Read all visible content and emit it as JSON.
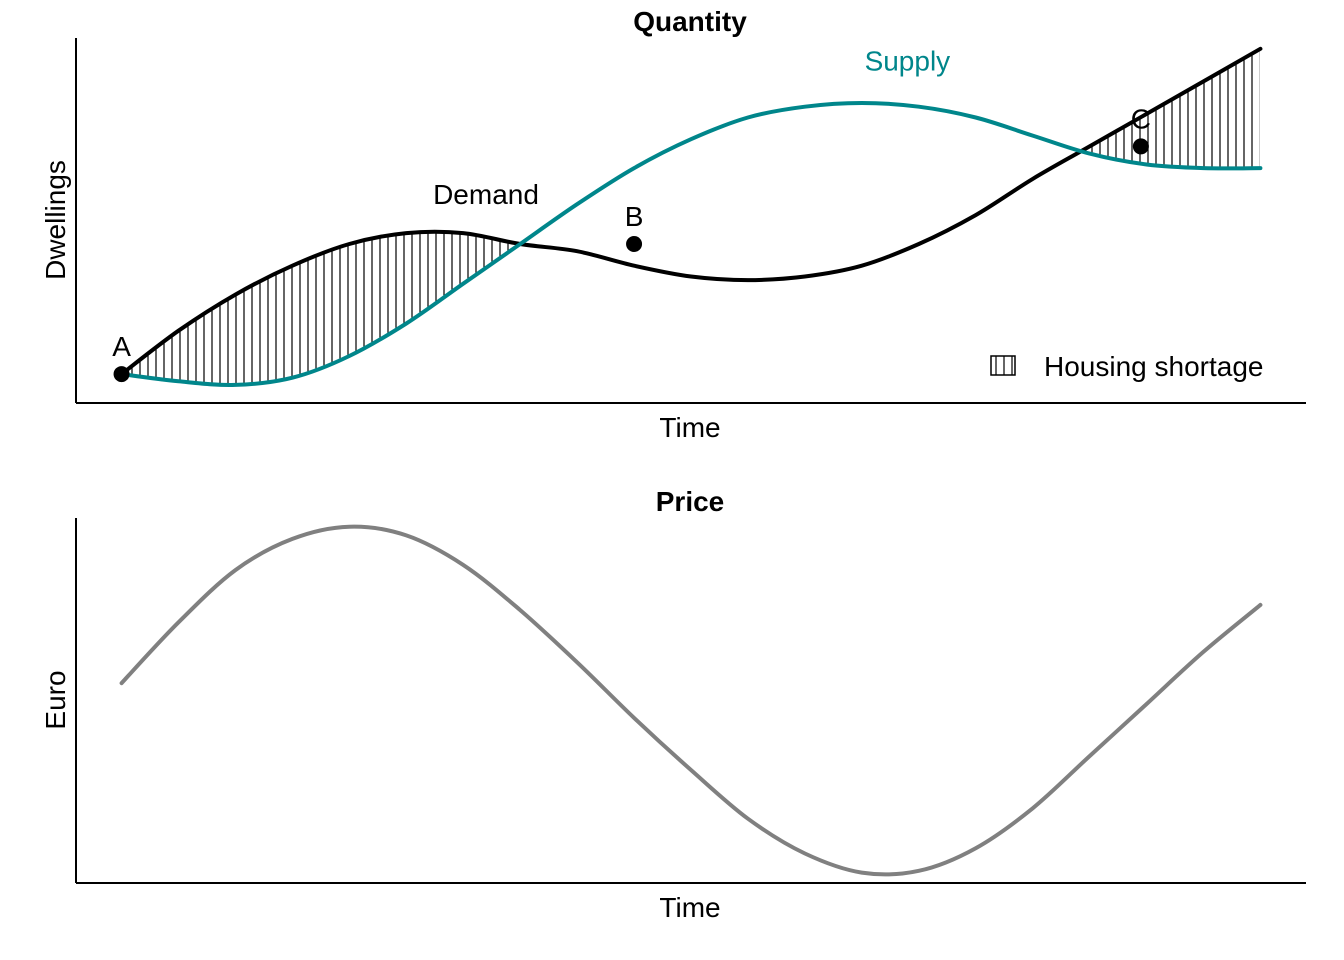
{
  "colors": {
    "demand": "#000000",
    "supply": "#00868B",
    "price": "#808080",
    "hatch": "#000000",
    "point": "#000000"
  },
  "chart_data": [
    {
      "type": "line",
      "title": "Quantity",
      "xlabel": "Time",
      "ylabel": "Dwellings",
      "x_ticks": "none",
      "y_ticks": "none",
      "grid": false,
      "x": [
        0,
        0.5,
        1,
        1.5,
        2,
        2.5,
        3,
        3.5,
        4,
        4.5,
        5,
        5.5,
        6,
        6.5,
        7,
        7.5,
        8,
        8.5,
        9,
        9.5,
        10
      ],
      "series": [
        {
          "name": "Demand",
          "color_key": "demand",
          "values": [
            1.0,
            2.2,
            3.2,
            4.0,
            4.6,
            4.9,
            4.9,
            4.6,
            4.4,
            4.0,
            3.7,
            3.6,
            3.7,
            4.0,
            4.6,
            5.4,
            6.4,
            7.3,
            8.2,
            9.1,
            10.0
          ],
          "label_at": {
            "x": 3.2,
            "y": 5.7
          }
        },
        {
          "name": "Supply",
          "color_key": "supply",
          "values": [
            1.0,
            0.8,
            0.7,
            0.9,
            1.5,
            2.4,
            3.5,
            4.6,
            5.7,
            6.7,
            7.5,
            8.1,
            8.4,
            8.5,
            8.4,
            8.1,
            7.6,
            7.1,
            6.8,
            6.7,
            6.7
          ],
          "label_at": {
            "x": 6.9,
            "y": 9.4
          }
        }
      ],
      "points": [
        {
          "label": "A",
          "x": 0,
          "y": 1.0
        },
        {
          "label": "B",
          "x": 4.5,
          "y": 4.6
        },
        {
          "label": "C",
          "x": 8.95,
          "y": 7.3
        }
      ],
      "shaded_region": {
        "legend": "Housing shortage",
        "pattern": "vertical-hatch",
        "where": "demand above supply"
      },
      "xlim": [
        -0.4,
        10.4
      ],
      "ylim": [
        0.2,
        10.3
      ],
      "legend_position": "bottom-right"
    },
    {
      "type": "line",
      "title": "Price",
      "xlabel": "Time",
      "ylabel": "Euro",
      "x_ticks": "none",
      "y_ticks": "none",
      "grid": false,
      "x": [
        0,
        0.5,
        1,
        1.5,
        2,
        2.5,
        3,
        3.5,
        4,
        4.5,
        5,
        5.5,
        6,
        6.5,
        7,
        7.5,
        8,
        8.5,
        9,
        9.5,
        10
      ],
      "series": [
        {
          "color_key": "price",
          "values": [
            0.1,
            0.45,
            0.75,
            0.93,
            1.0,
            0.95,
            0.78,
            0.52,
            0.22,
            -0.1,
            -0.4,
            -0.68,
            -0.88,
            -0.99,
            -0.98,
            -0.85,
            -0.62,
            -0.32,
            -0.02,
            0.28,
            0.55
          ]
        }
      ],
      "xlim": [
        -0.4,
        10.4
      ],
      "ylim": [
        -1.05,
        1.05
      ]
    }
  ]
}
